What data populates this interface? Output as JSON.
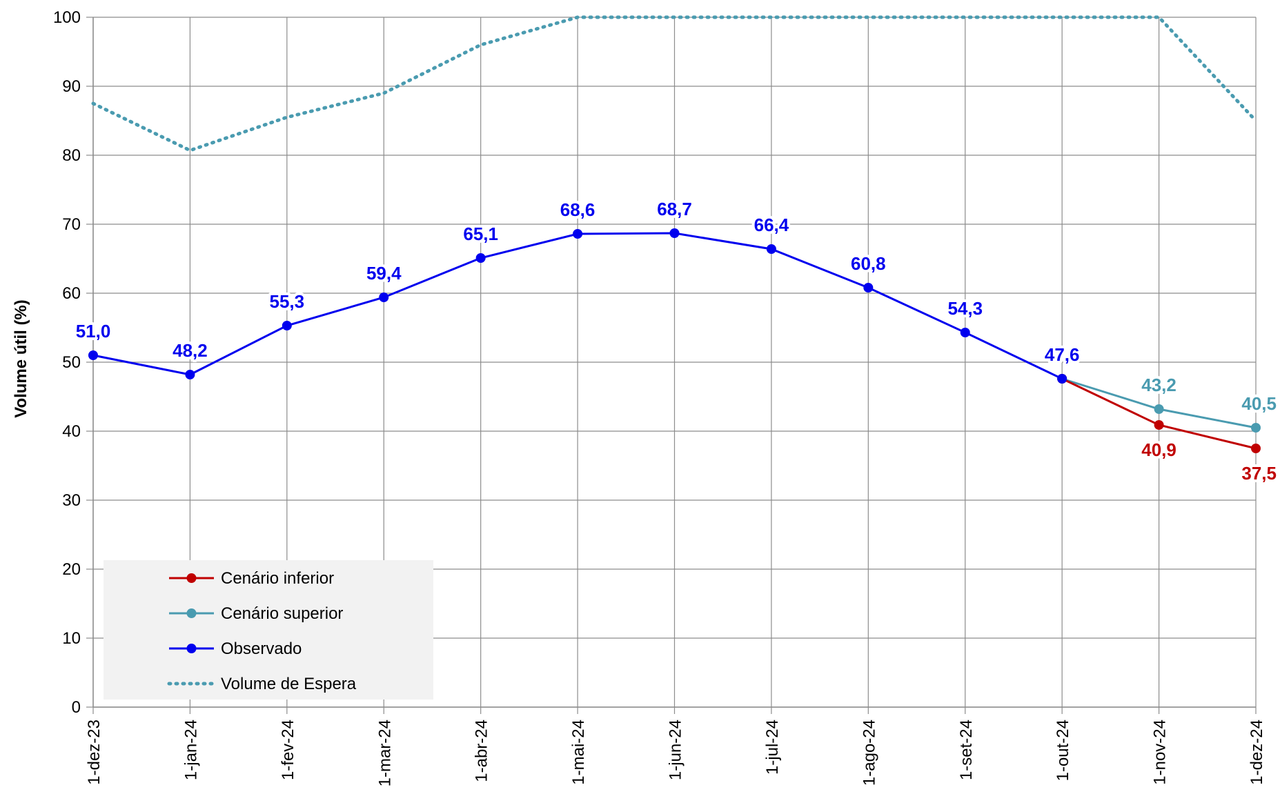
{
  "chart_data": {
    "type": "line",
    "ylabel": "Volume útil (%)",
    "ylim": [
      0,
      100
    ],
    "yticks": [
      "0",
      "10",
      "20",
      "30",
      "40",
      "50",
      "60",
      "70",
      "80",
      "90",
      "100"
    ],
    "categories": [
      "1-dez-23",
      "1-jan-24",
      "1-fev-24",
      "1-mar-24",
      "1-abr-24",
      "1-mai-24",
      "1-jun-24",
      "1-jul-24",
      "1-ago-24",
      "1-set-24",
      "1-out-24",
      "1-nov-24",
      "1-dez-24"
    ],
    "grid": true,
    "legend_position": "bottom-left",
    "series": [
      {
        "name": "Cenário inferior",
        "color": "#c00000",
        "style": "solid-marker",
        "values": [
          null,
          null,
          null,
          null,
          null,
          null,
          null,
          null,
          null,
          null,
          47.6,
          40.9,
          37.5
        ],
        "labels": [
          null,
          null,
          null,
          null,
          null,
          null,
          null,
          null,
          null,
          null,
          null,
          "40,9",
          "37,5"
        ]
      },
      {
        "name": "Cenário superior",
        "color": "#4a9bb0",
        "style": "solid-marker",
        "values": [
          null,
          null,
          null,
          null,
          null,
          null,
          null,
          null,
          null,
          null,
          47.6,
          43.2,
          40.5
        ],
        "labels": [
          null,
          null,
          null,
          null,
          null,
          null,
          null,
          null,
          null,
          null,
          null,
          "43,2",
          "40,5"
        ]
      },
      {
        "name": "Observado",
        "color": "#0000ee",
        "style": "solid-marker",
        "values": [
          51.0,
          48.2,
          55.3,
          59.4,
          65.1,
          68.6,
          68.7,
          66.4,
          60.8,
          54.3,
          47.6,
          null,
          null
        ],
        "labels": [
          "51,0",
          "48,2",
          "55,3",
          "59,4",
          "65,1",
          "68,6",
          "68,7",
          "66,4",
          "60,8",
          "54,3",
          "47,6",
          null,
          null
        ]
      },
      {
        "name": "Volume de Espera",
        "color": "#4a9bb0",
        "style": "dotted",
        "values": [
          87.5,
          80.7,
          85.5,
          89.0,
          96.0,
          100,
          100,
          100,
          100,
          100,
          100,
          100,
          85.0
        ],
        "labels": []
      }
    ]
  }
}
